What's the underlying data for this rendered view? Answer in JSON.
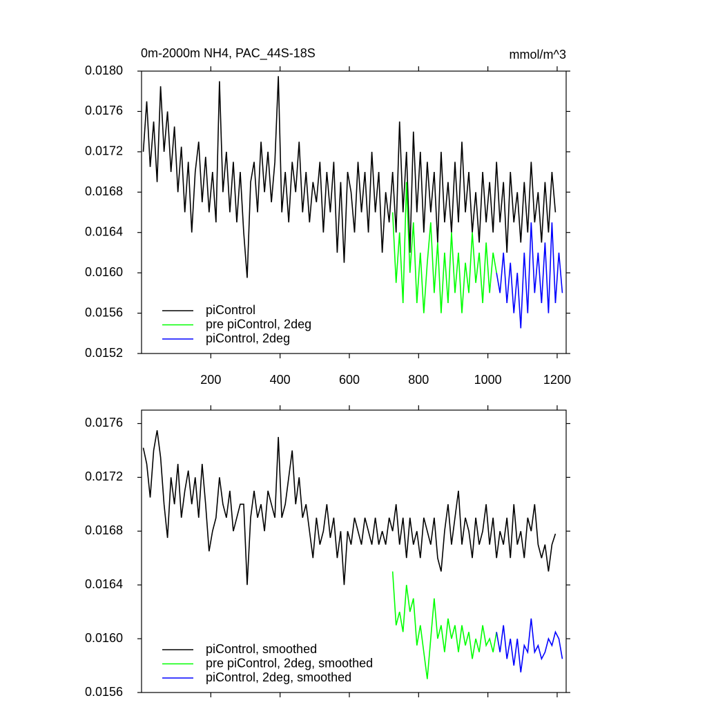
{
  "chart_data": [
    {
      "type": "line",
      "title": "0m-2000m NH4, PAC_44S-18S",
      "units": "mmol/m^3",
      "xlim": [
        0,
        1226
      ],
      "xticks": [
        200,
        400,
        600,
        800,
        1000,
        1200
      ],
      "xtick_labels": true,
      "ylim": [
        0.0152,
        0.018
      ],
      "yticks": [
        0.0152,
        0.0156,
        {
          "value": 0.016,
          "label": "0.0160"
        },
        0.0164,
        0.0168,
        0.0172,
        0.0176,
        {
          "value": 0.018,
          "label": "0.0180"
        }
      ],
      "legend": "lower left",
      "series": [
        {
          "name": "piControl",
          "color": "#000000",
          "x": [
            5,
            15,
            25,
            35,
            45,
            55,
            65,
            75,
            85,
            95,
            105,
            115,
            125,
            135,
            145,
            155,
            165,
            175,
            185,
            195,
            205,
            215,
            225,
            235,
            245,
            255,
            265,
            275,
            285,
            295,
            305,
            315,
            325,
            335,
            345,
            355,
            365,
            375,
            385,
            395,
            405,
            415,
            425,
            435,
            445,
            455,
            465,
            475,
            485,
            495,
            505,
            515,
            525,
            535,
            545,
            555,
            565,
            575,
            585,
            595,
            605,
            615,
            625,
            635,
            645,
            655,
            665,
            675,
            685,
            695,
            705,
            715,
            725,
            735,
            745,
            755,
            765,
            775,
            785,
            795,
            805,
            815,
            825,
            835,
            845,
            855,
            865,
            875,
            885,
            895,
            905,
            915,
            925,
            935,
            945,
            955,
            965,
            975,
            985,
            995,
            1005,
            1015,
            1025,
            1035,
            1045,
            1055,
            1065,
            1075,
            1085,
            1095,
            1105,
            1115,
            1125,
            1135,
            1145,
            1155,
            1165,
            1175,
            1185,
            1195
          ],
          "values": [
            0.0172,
            0.0177,
            0.01705,
            0.0175,
            0.0169,
            0.01785,
            0.0172,
            0.0176,
            0.017,
            0.01745,
            0.0168,
            0.01725,
            0.0166,
            0.0171,
            0.0164,
            0.017,
            0.0173,
            0.0167,
            0.01715,
            0.0166,
            0.017,
            0.0165,
            0.0179,
            0.0168,
            0.0172,
            0.0166,
            0.0171,
            0.0165,
            0.017,
            0.0164,
            0.01595,
            0.0169,
            0.0171,
            0.0166,
            0.0173,
            0.0168,
            0.0172,
            0.0167,
            0.0171,
            0.01795,
            0.0166,
            0.017,
            0.0165,
            0.0171,
            0.0168,
            0.0173,
            0.0166,
            0.017,
            0.0165,
            0.0169,
            0.0167,
            0.0171,
            0.0164,
            0.017,
            0.0166,
            0.0171,
            0.0162,
            0.0169,
            0.0161,
            0.017,
            0.0168,
            0.0164,
            0.0171,
            0.0166,
            0.017,
            0.0164,
            0.0172,
            0.0166,
            0.017,
            0.0162,
            0.0168,
            0.0165,
            0.017,
            0.0164,
            0.0175,
            0.0166,
            0.0172,
            0.0162,
            0.0174,
            0.0166,
            0.0172,
            0.0164,
            0.0171,
            0.0166,
            0.017,
            0.0163,
            0.0172,
            0.0165,
            0.0169,
            0.0164,
            0.0171,
            0.0165,
            0.0173,
            0.0166,
            0.017,
            0.0164,
            0.0168,
            0.0163,
            0.017,
            0.0165,
            0.0169,
            0.0164,
            0.0171,
            0.0165,
            0.0169,
            0.0162,
            0.017,
            0.0165,
            0.0168,
            0.0163,
            0.0169,
            0.0164,
            0.0171,
            0.0165,
            0.0168,
            0.0163,
            0.0169,
            0.0164,
            0.017,
            0.0166
          ]
        },
        {
          "name": "pre piControl, 2deg",
          "color": "#00ff00",
          "x": [
            725,
            735,
            745,
            755,
            765,
            775,
            785,
            795,
            805,
            815,
            825,
            835,
            845,
            855,
            865,
            875,
            885,
            895,
            905,
            915,
            925,
            935,
            945,
            955,
            965,
            975,
            985,
            995,
            1005,
            1015,
            1025
          ],
          "values": [
            0.0166,
            0.0159,
            0.0164,
            0.0157,
            0.0169,
            0.016,
            0.0165,
            0.0157,
            0.0162,
            0.0156,
            0.0161,
            0.0165,
            0.0158,
            0.0163,
            0.0156,
            0.0162,
            0.0157,
            0.0164,
            0.0158,
            0.0162,
            0.0156,
            0.0161,
            0.0158,
            0.0164,
            0.0159,
            0.0162,
            0.0157,
            0.0163,
            0.0158,
            0.0162,
            0.016
          ]
        },
        {
          "name": "piControl, 2deg",
          "color": "#0000ff",
          "x": [
            1025,
            1035,
            1045,
            1055,
            1065,
            1075,
            1085,
            1095,
            1105,
            1115,
            1125,
            1135,
            1145,
            1155,
            1165,
            1175,
            1185,
            1195,
            1205,
            1215
          ],
          "values": [
            0.016,
            0.0158,
            0.0162,
            0.0157,
            0.0161,
            0.0156,
            0.016,
            0.01545,
            0.0162,
            0.0156,
            0.0165,
            0.0158,
            0.0162,
            0.0157,
            0.0163,
            0.0156,
            0.0165,
            0.0157,
            0.0162,
            0.0158
          ]
        }
      ]
    },
    {
      "type": "line",
      "xlim": [
        0,
        1226
      ],
      "xticks": [
        200,
        400,
        600,
        800,
        1000,
        1200
      ],
      "xtick_labels": false,
      "ylim": [
        0.0156,
        0.0177
      ],
      "yticks": [
        0.0156,
        {
          "value": 0.016,
          "label": "0.0160"
        },
        0.0164,
        0.0168,
        0.0172,
        0.0176
      ],
      "legend": "lower left",
      "series": [
        {
          "name": "piControl, smoothed",
          "color": "#000000",
          "x": [
            5,
            15,
            25,
            35,
            45,
            55,
            65,
            75,
            85,
            95,
            105,
            115,
            125,
            135,
            145,
            155,
            165,
            175,
            185,
            195,
            205,
            215,
            225,
            235,
            245,
            255,
            265,
            275,
            285,
            295,
            305,
            315,
            325,
            335,
            345,
            355,
            365,
            375,
            385,
            395,
            405,
            415,
            425,
            435,
            445,
            455,
            465,
            475,
            485,
            495,
            505,
            515,
            525,
            535,
            545,
            555,
            565,
            575,
            585,
            595,
            605,
            615,
            625,
            635,
            645,
            655,
            665,
            675,
            685,
            695,
            705,
            715,
            725,
            735,
            745,
            755,
            765,
            775,
            785,
            795,
            805,
            815,
            825,
            835,
            845,
            855,
            865,
            875,
            885,
            895,
            905,
            915,
            925,
            935,
            945,
            955,
            965,
            975,
            985,
            995,
            1005,
            1015,
            1025,
            1035,
            1045,
            1055,
            1065,
            1075,
            1085,
            1095,
            1105,
            1115,
            1125,
            1135,
            1145,
            1155,
            1165,
            1175,
            1185,
            1195
          ],
          "values": [
            0.01742,
            0.0173,
            0.01705,
            0.0174,
            0.01755,
            0.01735,
            0.017,
            0.01675,
            0.0172,
            0.017,
            0.0173,
            0.0169,
            0.0171,
            0.01725,
            0.017,
            0.0172,
            0.0169,
            0.0173,
            0.017,
            0.01665,
            0.0168,
            0.0169,
            0.0172,
            0.017,
            0.0169,
            0.0171,
            0.0168,
            0.0169,
            0.017,
            0.017,
            0.0164,
            0.0169,
            0.0171,
            0.0169,
            0.017,
            0.0168,
            0.0171,
            0.017,
            0.0169,
            0.0175,
            0.0169,
            0.017,
            0.0172,
            0.0174,
            0.017,
            0.0172,
            0.0169,
            0.017,
            0.0168,
            0.0166,
            0.0169,
            0.0167,
            0.0168,
            0.017,
            0.01675,
            0.0169,
            0.0166,
            0.0168,
            0.0164,
            0.0168,
            0.0167,
            0.0169,
            0.0168,
            0.0167,
            0.0169,
            0.0168,
            0.0167,
            0.0169,
            0.0167,
            0.0168,
            0.0167,
            0.0169,
            0.0168,
            0.017,
            0.0167,
            0.0169,
            0.0166,
            0.0169,
            0.0167,
            0.0168,
            0.0166,
            0.0169,
            0.0168,
            0.0167,
            0.0169,
            0.0166,
            0.0165,
            0.0168,
            0.017,
            0.0167,
            0.0169,
            0.0171,
            0.0167,
            0.0169,
            0.0168,
            0.0166,
            0.0169,
            0.0167,
            0.0168,
            0.017,
            0.0167,
            0.0169,
            0.0166,
            0.0168,
            0.0167,
            0.0169,
            0.0166,
            0.017,
            0.0167,
            0.0168,
            0.0166,
            0.0169,
            0.0168,
            0.017,
            0.0167,
            0.0166,
            0.0167,
            0.0165,
            0.0167,
            0.01678
          ]
        },
        {
          "name": "pre piControl, 2deg, smoothed",
          "color": "#00ff00",
          "x": [
            725,
            735,
            745,
            755,
            765,
            775,
            785,
            795,
            805,
            815,
            825,
            835,
            845,
            855,
            865,
            875,
            885,
            895,
            905,
            915,
            925,
            935,
            945,
            955,
            965,
            975,
            985,
            995,
            1005,
            1015,
            1025
          ],
          "values": [
            0.0165,
            0.0161,
            0.0162,
            0.01605,
            0.0164,
            0.0162,
            0.0163,
            0.01595,
            0.0161,
            0.0159,
            0.0157,
            0.016,
            0.0163,
            0.016,
            0.0161,
            0.0159,
            0.01615,
            0.016,
            0.0161,
            0.0159,
            0.0161,
            0.01595,
            0.01605,
            0.01585,
            0.016,
            0.0159,
            0.0161,
            0.01595,
            0.016,
            0.0159,
            0.01605
          ]
        },
        {
          "name": "piControl, 2deg, smoothed",
          "color": "#0000ff",
          "x": [
            1025,
            1035,
            1045,
            1055,
            1065,
            1075,
            1085,
            1095,
            1105,
            1115,
            1125,
            1135,
            1145,
            1155,
            1165,
            1175,
            1185,
            1195,
            1205,
            1215
          ],
          "values": [
            0.01605,
            0.0159,
            0.0161,
            0.01585,
            0.016,
            0.0158,
            0.016,
            0.01575,
            0.01595,
            0.0159,
            0.01615,
            0.0159,
            0.01595,
            0.01585,
            0.0159,
            0.016,
            0.01595,
            0.01605,
            0.016,
            0.01585
          ]
        }
      ]
    }
  ]
}
